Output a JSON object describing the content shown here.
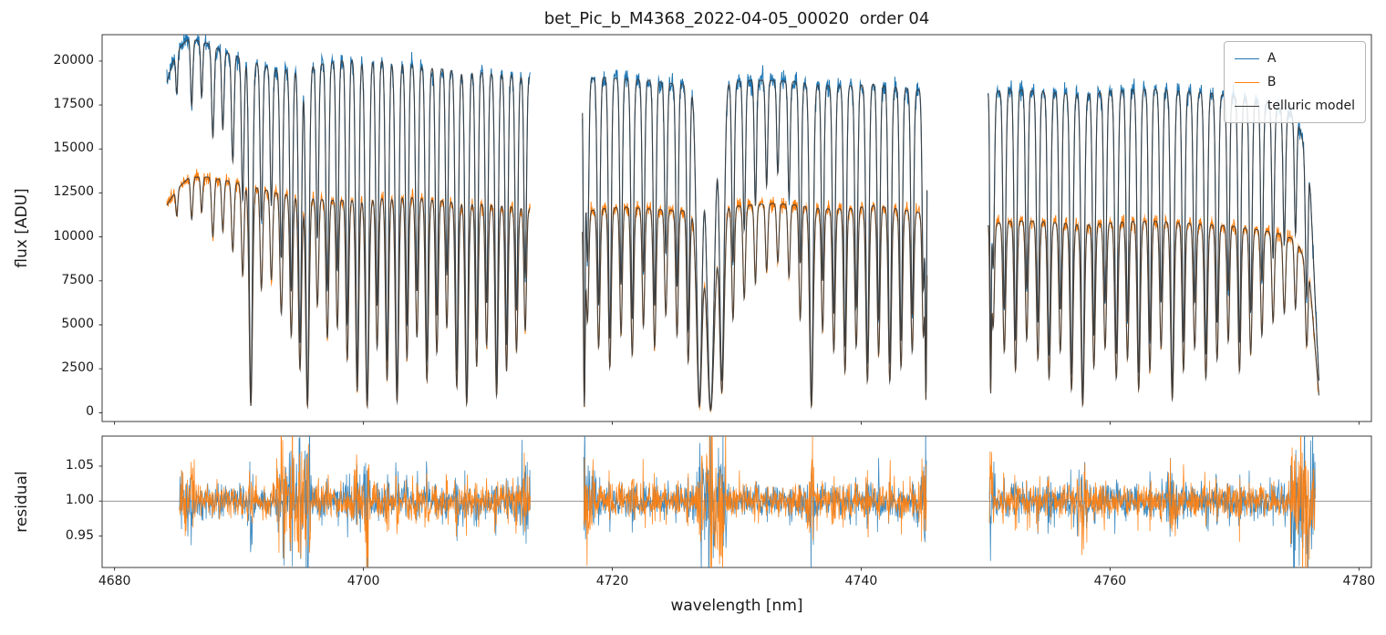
{
  "chart_data": {
    "type": "line",
    "title": "bet_Pic_b_M4368_2022-04-05_00020  order 04",
    "xlabel": "wavelength [nm]",
    "xlim": [
      4679,
      4781
    ],
    "xticks": [
      4680,
      4700,
      4720,
      4740,
      4760,
      4780
    ],
    "panels": [
      {
        "name": "flux",
        "ylabel": "flux [ADU]",
        "ylim": [
          -500,
          21500
        ],
        "yticks": [
          0,
          2500,
          5000,
          7500,
          10000,
          12500,
          15000,
          17500,
          20000
        ]
      },
      {
        "name": "residual",
        "ylabel": "residual",
        "ylim": [
          0.905,
          1.093
        ],
        "yticks": [
          0.95,
          1.0,
          1.05
        ]
      }
    ],
    "baseline": 1.0,
    "series": [
      {
        "name": "A",
        "color": "#1f77b4"
      },
      {
        "name": "B",
        "color": "#ff7f0e"
      },
      {
        "name": "telluric model",
        "color": "#3d3d3d"
      }
    ],
    "segments": [
      [
        4684.2,
        4713.4
      ],
      [
        4717.6,
        4745.3
      ],
      [
        4750.2,
        4776.8
      ]
    ],
    "residual_segments": [
      [
        4685.2,
        4713.4
      ],
      [
        4717.7,
        4745.25
      ],
      [
        4750.3,
        4776.5
      ]
    ],
    "continuum_A": [
      [
        4684.2,
        18800
      ],
      [
        4685.0,
        20600
      ],
      [
        4686.0,
        21300
      ],
      [
        4687.5,
        21000
      ],
      [
        4689.0,
        20500
      ],
      [
        4691.0,
        20000
      ],
      [
        4693.0,
        19500
      ],
      [
        4695.0,
        19600
      ],
      [
        4697.0,
        19900
      ],
      [
        4699.0,
        20100
      ],
      [
        4701.0,
        20100
      ],
      [
        4703.0,
        19900
      ],
      [
        4705.0,
        19700
      ],
      [
        4707.0,
        19500
      ],
      [
        4709.0,
        19400
      ],
      [
        4711.0,
        19300
      ],
      [
        4713.4,
        19100
      ],
      [
        4717.6,
        18900
      ],
      [
        4719.0,
        19100
      ],
      [
        4721.0,
        19000
      ],
      [
        4723.0,
        18900
      ],
      [
        4725.0,
        18700
      ],
      [
        4727.0,
        18700
      ],
      [
        4729.0,
        18800
      ],
      [
        4731.0,
        18900
      ],
      [
        4733.0,
        18900
      ],
      [
        4735.0,
        18800
      ],
      [
        4737.0,
        18600
      ],
      [
        4739.0,
        18600
      ],
      [
        4741.0,
        18700
      ],
      [
        4743.0,
        18500
      ],
      [
        4745.3,
        18300
      ],
      [
        4750.2,
        18200
      ],
      [
        4752.0,
        18400
      ],
      [
        4754.0,
        18300
      ],
      [
        4756.0,
        18200
      ],
      [
        4758.0,
        18100
      ],
      [
        4760.0,
        18300
      ],
      [
        4762.0,
        18400
      ],
      [
        4764.0,
        18400
      ],
      [
        4766.0,
        18300
      ],
      [
        4768.0,
        18200
      ],
      [
        4770.0,
        18000
      ],
      [
        4772.0,
        17700
      ],
      [
        4773.5,
        17400
      ],
      [
        4775.0,
        16800
      ],
      [
        4776.0,
        14000
      ],
      [
        4776.8,
        1500
      ]
    ],
    "continuum_B": [
      [
        4684.2,
        11800
      ],
      [
        4685.0,
        12700
      ],
      [
        4686.0,
        13400
      ],
      [
        4687.5,
        13400
      ],
      [
        4689.0,
        13200
      ],
      [
        4691.0,
        12900
      ],
      [
        4693.0,
        12500
      ],
      [
        4695.0,
        12300
      ],
      [
        4697.0,
        12100
      ],
      [
        4699.0,
        12100
      ],
      [
        4701.0,
        12200
      ],
      [
        4703.0,
        12300
      ],
      [
        4705.0,
        12200
      ],
      [
        4707.0,
        12000
      ],
      [
        4709.0,
        11900
      ],
      [
        4711.0,
        11800
      ],
      [
        4713.4,
        11600
      ],
      [
        4717.6,
        11400
      ],
      [
        4719.0,
        11600
      ],
      [
        4721.0,
        11700
      ],
      [
        4723.0,
        11600
      ],
      [
        4725.0,
        11500
      ],
      [
        4727.0,
        11500
      ],
      [
        4729.0,
        11700
      ],
      [
        4731.0,
        11800
      ],
      [
        4733.0,
        11900
      ],
      [
        4735.0,
        11800
      ],
      [
        4737.0,
        11600
      ],
      [
        4739.0,
        11600
      ],
      [
        4741.0,
        11800
      ],
      [
        4743.0,
        11600
      ],
      [
        4745.3,
        11300
      ],
      [
        4750.2,
        10700
      ],
      [
        4752.0,
        10900
      ],
      [
        4754.0,
        10900
      ],
      [
        4756.0,
        10800
      ],
      [
        4758.0,
        10700
      ],
      [
        4760.0,
        10800
      ],
      [
        4762.0,
        10900
      ],
      [
        4764.0,
        10900
      ],
      [
        4766.0,
        10800
      ],
      [
        4768.0,
        10700
      ],
      [
        4770.0,
        10600
      ],
      [
        4772.0,
        10400
      ],
      [
        4773.5,
        10200
      ],
      [
        4775.0,
        9800
      ],
      [
        4776.0,
        8000
      ],
      [
        4776.8,
        800
      ]
    ],
    "telluric_lines": [
      [
        4685.0,
        0.12,
        0.08
      ],
      [
        4686.2,
        0.18,
        0.09
      ],
      [
        4687.0,
        0.15,
        0.08
      ],
      [
        4687.9,
        0.25,
        0.1
      ],
      [
        4688.7,
        0.22,
        0.09
      ],
      [
        4689.5,
        0.3,
        0.1
      ],
      [
        4690.3,
        0.4,
        0.1
      ],
      [
        4690.95,
        0.97,
        0.13
      ],
      [
        4691.8,
        0.45,
        0.1
      ],
      [
        4692.6,
        0.4,
        0.1
      ],
      [
        4693.4,
        0.55,
        0.11
      ],
      [
        4694.2,
        0.65,
        0.11
      ],
      [
        4694.9,
        0.8,
        0.12
      ],
      [
        4695.5,
        0.97,
        0.13
      ],
      [
        4696.3,
        0.5,
        0.1
      ],
      [
        4697.1,
        0.65,
        0.11
      ],
      [
        4697.9,
        0.6,
        0.1
      ],
      [
        4698.7,
        0.75,
        0.11
      ],
      [
        4699.5,
        0.9,
        0.12
      ],
      [
        4700.3,
        0.97,
        0.14
      ],
      [
        4701.1,
        0.7,
        0.11
      ],
      [
        4701.9,
        0.85,
        0.12
      ],
      [
        4702.7,
        0.95,
        0.13
      ],
      [
        4703.5,
        0.75,
        0.11
      ],
      [
        4704.3,
        0.65,
        0.11
      ],
      [
        4705.1,
        0.85,
        0.12
      ],
      [
        4705.9,
        0.72,
        0.11
      ],
      [
        4706.7,
        0.6,
        0.1
      ],
      [
        4707.5,
        0.88,
        0.12
      ],
      [
        4708.3,
        0.96,
        0.13
      ],
      [
        4709.1,
        0.78,
        0.11
      ],
      [
        4709.9,
        0.68,
        0.11
      ],
      [
        4710.7,
        0.92,
        0.12
      ],
      [
        4711.5,
        0.8,
        0.11
      ],
      [
        4712.3,
        0.7,
        0.11
      ],
      [
        4713.0,
        0.6,
        0.1
      ],
      [
        4717.75,
        0.97,
        0.07
      ],
      [
        4718.0,
        0.55,
        0.1
      ],
      [
        4718.9,
        0.68,
        0.11
      ],
      [
        4719.8,
        0.78,
        0.11
      ],
      [
        4720.7,
        0.62,
        0.1
      ],
      [
        4721.6,
        0.72,
        0.11
      ],
      [
        4722.5,
        0.58,
        0.1
      ],
      [
        4723.4,
        0.68,
        0.11
      ],
      [
        4724.3,
        0.52,
        0.1
      ],
      [
        4725.2,
        0.62,
        0.1
      ],
      [
        4726.1,
        0.75,
        0.11
      ],
      [
        4727.0,
        0.97,
        0.22
      ],
      [
        4727.9,
        0.99,
        0.3
      ],
      [
        4728.8,
        0.9,
        0.18
      ],
      [
        4729.7,
        0.55,
        0.1
      ],
      [
        4730.6,
        0.45,
        0.1
      ],
      [
        4731.5,
        0.38,
        0.09
      ],
      [
        4732.4,
        0.32,
        0.09
      ],
      [
        4733.3,
        0.28,
        0.09
      ],
      [
        4734.2,
        0.35,
        0.09
      ],
      [
        4735.1,
        0.55,
        0.1
      ],
      [
        4736.0,
        0.97,
        0.14
      ],
      [
        4736.9,
        0.6,
        0.1
      ],
      [
        4737.8,
        0.7,
        0.11
      ],
      [
        4738.7,
        0.8,
        0.11
      ],
      [
        4739.6,
        0.68,
        0.11
      ],
      [
        4740.5,
        0.85,
        0.12
      ],
      [
        4741.4,
        0.72,
        0.11
      ],
      [
        4742.3,
        0.85,
        0.12
      ],
      [
        4743.2,
        0.78,
        0.11
      ],
      [
        4744.1,
        0.7,
        0.11
      ],
      [
        4745.0,
        0.62,
        0.1
      ],
      [
        4745.2,
        0.93,
        0.06
      ],
      [
        4750.4,
        0.9,
        0.06
      ],
      [
        4750.6,
        0.55,
        0.1
      ],
      [
        4751.5,
        0.68,
        0.11
      ],
      [
        4752.4,
        0.78,
        0.11
      ],
      [
        4753.3,
        0.62,
        0.1
      ],
      [
        4754.2,
        0.72,
        0.11
      ],
      [
        4755.1,
        0.82,
        0.12
      ],
      [
        4756.0,
        0.68,
        0.11
      ],
      [
        4756.9,
        0.88,
        0.12
      ],
      [
        4757.8,
        0.96,
        0.13
      ],
      [
        4758.7,
        0.76,
        0.11
      ],
      [
        4759.6,
        0.66,
        0.11
      ],
      [
        4760.5,
        0.82,
        0.12
      ],
      [
        4761.4,
        0.72,
        0.11
      ],
      [
        4762.3,
        0.88,
        0.12
      ],
      [
        4763.2,
        0.78,
        0.11
      ],
      [
        4764.1,
        0.66,
        0.11
      ],
      [
        4765.0,
        0.93,
        0.13
      ],
      [
        4765.9,
        0.78,
        0.11
      ],
      [
        4766.8,
        0.66,
        0.11
      ],
      [
        4767.7,
        0.82,
        0.12
      ],
      [
        4768.6,
        0.72,
        0.11
      ],
      [
        4769.5,
        0.62,
        0.1
      ],
      [
        4770.4,
        0.78,
        0.11
      ],
      [
        4771.3,
        0.68,
        0.11
      ],
      [
        4772.2,
        0.58,
        0.1
      ],
      [
        4773.1,
        0.5,
        0.1
      ],
      [
        4774.0,
        0.44,
        0.1
      ],
      [
        4774.9,
        0.4,
        0.09
      ],
      [
        4775.8,
        0.55,
        0.1
      ]
    ],
    "residual_noise_regions": [
      [
        4685.2,
        4686.5,
        2.2
      ],
      [
        4693.0,
        4695.8,
        3.2
      ],
      [
        4699.0,
        4700.6,
        1.8
      ],
      [
        4712.5,
        4713.4,
        2.0
      ],
      [
        4717.7,
        4718.6,
        2.2
      ],
      [
        4727.0,
        4729.2,
        2.4
      ],
      [
        4735.5,
        4736.5,
        2.0
      ],
      [
        4744.4,
        4745.25,
        2.2
      ],
      [
        4750.3,
        4751.0,
        1.8
      ],
      [
        4757.3,
        4758.3,
        1.8
      ],
      [
        4764.5,
        4765.5,
        1.8
      ],
      [
        4774.5,
        4776.5,
        4.5
      ]
    ],
    "noise": {
      "A": 260,
      "B": 205,
      "residual": 0.011,
      "seed": 7
    }
  }
}
